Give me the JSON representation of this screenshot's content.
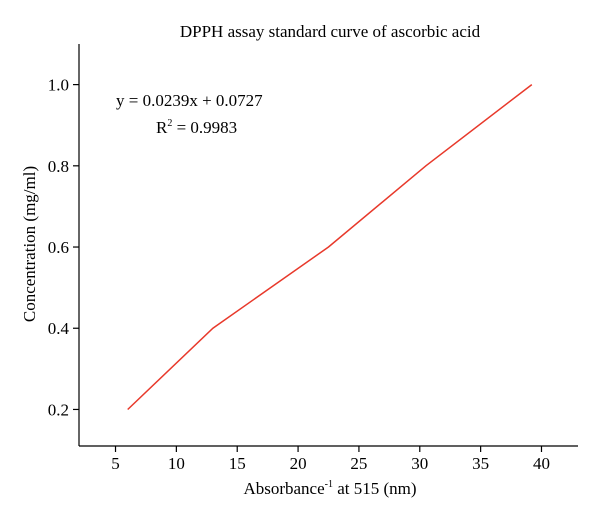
{
  "chart_data": {
    "type": "line",
    "title": "DPPH assay standard curve of ascorbic acid",
    "xlabel": {
      "prefix": "Absorbance",
      "superscript": "-1",
      "suffix": " at 515 (nm)"
    },
    "ylabel": "Concentration (mg/ml)",
    "xlim": [
      2,
      43
    ],
    "ylim": [
      0.11,
      1.1
    ],
    "x_ticks": [
      5,
      10,
      15,
      20,
      25,
      30,
      35,
      40
    ],
    "x_tick_labels": [
      "5",
      "10",
      "15",
      "20",
      "25",
      "30",
      "35",
      "40"
    ],
    "y_ticks": [
      0.2,
      0.4,
      0.6,
      0.8,
      1.0
    ],
    "y_tick_labels": [
      "0.2",
      "0.4",
      "0.6",
      "0.8",
      "1.0"
    ],
    "grid": false,
    "series": [
      {
        "color": "#e8392b",
        "x": [
          6.0,
          13.0,
          22.5,
          30.5,
          39.2
        ],
        "y": [
          0.2,
          0.4,
          0.6,
          0.8,
          1.0
        ]
      }
    ],
    "annotations": {
      "equation": "y = 0.0239x + 0.0727",
      "r2_prefix": "R",
      "r2_superscript": "2",
      "r2_value": " = 0.9983"
    }
  }
}
